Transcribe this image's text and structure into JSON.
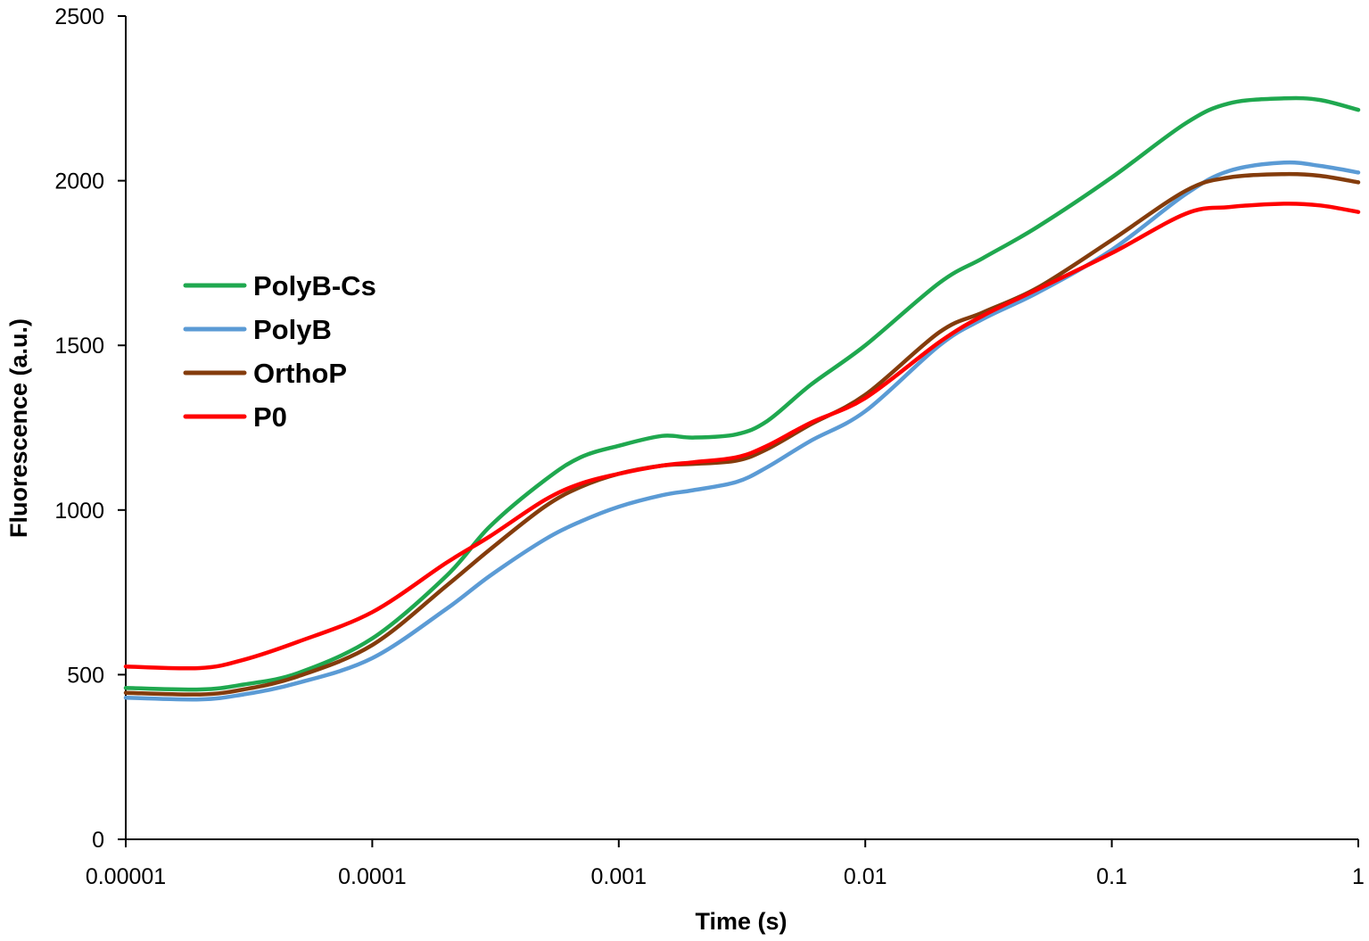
{
  "chart_data": {
    "type": "line",
    "title": "",
    "xlabel": "Time (s)",
    "ylabel": "Fluorescence (a.u.)",
    "xscale": "log",
    "xlim": [
      1e-05,
      1
    ],
    "ylim": [
      0,
      2500
    ],
    "x_tick_labels": [
      "0.00001",
      "0.0001",
      "0.001",
      "0.01",
      "0.1",
      "1"
    ],
    "y_tick_labels": [
      "0",
      "500",
      "1000",
      "1500",
      "2000",
      "2500"
    ],
    "y_ticks": [
      0,
      500,
      1000,
      1500,
      2000,
      2500
    ],
    "grid": false,
    "legend_position": "center-left",
    "series": [
      {
        "name": "PolyB-Cs",
        "color": "#1fa84f",
        "x": [
          1e-05,
          2e-05,
          3e-05,
          5e-05,
          0.0001,
          0.0002,
          0.0003,
          0.0005,
          0.0007,
          0.001,
          0.0015,
          0.002,
          0.003,
          0.004,
          0.006,
          0.01,
          0.02,
          0.03,
          0.05,
          0.1,
          0.2,
          0.3,
          0.5,
          0.7,
          1
        ],
        "y": [
          460,
          455,
          470,
          505,
          610,
          800,
          950,
          1090,
          1160,
          1195,
          1225,
          1220,
          1230,
          1270,
          1380,
          1500,
          1690,
          1765,
          1860,
          2010,
          2175,
          2235,
          2250,
          2245,
          2215
        ]
      },
      {
        "name": "PolyB",
        "color": "#5b9bd5",
        "x": [
          1e-05,
          2e-05,
          3e-05,
          5e-05,
          0.0001,
          0.0002,
          0.0003,
          0.0005,
          0.0007,
          0.001,
          0.0015,
          0.002,
          0.003,
          0.004,
          0.006,
          0.01,
          0.02,
          0.03,
          0.05,
          0.1,
          0.2,
          0.3,
          0.5,
          0.7,
          1
        ],
        "y": [
          430,
          425,
          440,
          475,
          550,
          700,
          800,
          910,
          965,
          1010,
          1045,
          1060,
          1085,
          1130,
          1210,
          1300,
          1500,
          1580,
          1660,
          1790,
          1960,
          2030,
          2055,
          2045,
          2025
        ]
      },
      {
        "name": "OrthoP",
        "color": "#843c0c",
        "x": [
          1e-05,
          2e-05,
          3e-05,
          5e-05,
          0.0001,
          0.0002,
          0.0003,
          0.0005,
          0.0007,
          0.001,
          0.0015,
          0.002,
          0.003,
          0.004,
          0.006,
          0.01,
          0.02,
          0.03,
          0.05,
          0.1,
          0.2,
          0.3,
          0.5,
          0.7,
          1
        ],
        "y": [
          445,
          440,
          455,
          495,
          590,
          770,
          880,
          1010,
          1070,
          1110,
          1135,
          1140,
          1150,
          1185,
          1260,
          1350,
          1540,
          1600,
          1675,
          1820,
          1970,
          2010,
          2020,
          2015,
          1995
        ]
      },
      {
        "name": "P0",
        "color": "#ff0000",
        "x": [
          1e-05,
          2e-05,
          3e-05,
          5e-05,
          0.0001,
          0.0002,
          0.0003,
          0.0005,
          0.0007,
          0.001,
          0.0015,
          0.002,
          0.003,
          0.004,
          0.006,
          0.01,
          0.02,
          0.03,
          0.05,
          0.1,
          0.2,
          0.3,
          0.5,
          0.7,
          1
        ],
        "y": [
          525,
          520,
          545,
          600,
          690,
          840,
          920,
          1030,
          1080,
          1110,
          1135,
          1145,
          1160,
          1195,
          1265,
          1340,
          1510,
          1590,
          1670,
          1780,
          1900,
          1920,
          1930,
          1925,
          1905
        ]
      }
    ]
  }
}
